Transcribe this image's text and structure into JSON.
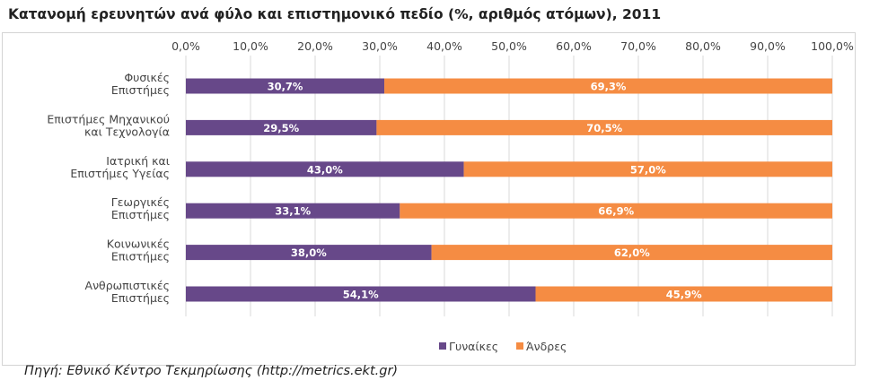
{
  "chart_data": {
    "type": "bar",
    "orientation": "horizontal",
    "stacked": true,
    "title": "Κατανομή ερευνητών ανά φύλο και επιστημονικό πεδίο (%, αριθμός ατόμων), 2011",
    "categories": [
      [
        "Φυσικές",
        "Επιστήμες"
      ],
      [
        "Επιστήμες Μηχανικού",
        "και Τεχνολογία"
      ],
      [
        "Ιατρική και",
        "Επιστήμες Υγείας"
      ],
      [
        "Γεωργικές",
        "Επιστήμες"
      ],
      [
        "Κοινωνικές",
        "Επιστήμες"
      ],
      [
        "Ανθρωπιστικές",
        "Επιστήμες"
      ]
    ],
    "series": [
      {
        "name": "Γυναίκες",
        "color": "#674889",
        "values": [
          30.7,
          29.5,
          43.0,
          33.1,
          38.0,
          54.1
        ],
        "labels": [
          "30,7%",
          "29,5%",
          "43,0%",
          "33,1%",
          "38,0%",
          "54,1%"
        ]
      },
      {
        "name": "Άνδρες",
        "color": "#f58c43",
        "values": [
          69.3,
          70.5,
          57.0,
          66.9,
          62.0,
          45.9
        ],
        "labels": [
          "69,3%",
          "70,5%",
          "57,0%",
          "66,9%",
          "62,0%",
          "45,9%"
        ]
      }
    ],
    "xlim": [
      0,
      100
    ],
    "x_ticks": [
      "0,0%",
      "10,0%",
      "20,0%",
      "30,0%",
      "40,0%",
      "50,0%",
      "60,0%",
      "70,0%",
      "80,0%",
      "90,0%",
      "100,0%"
    ],
    "grid": true,
    "legend_position": "bottom"
  },
  "source": "Πηγή: Εθνικό Κέντρο Τεκμηρίωσης (http://metrics.ekt.gr)"
}
